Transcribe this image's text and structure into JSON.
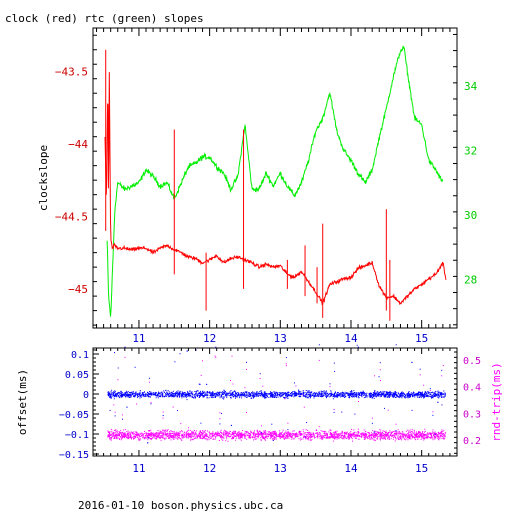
{
  "footer": "2016-01-10  boson.physics.ubc.ca",
  "chart_data": [
    {
      "type": "line",
      "title": "clock (red) rtc (green) slopes",
      "ylabel": "clockslope",
      "xlim": [
        10.35,
        15.5
      ],
      "ylim": [
        -45.27,
        -43.2
      ],
      "x_ticks": [
        11,
        12,
        13,
        14,
        15
      ],
      "y_ticks": [
        -45,
        -44.5,
        -44,
        -43.5
      ],
      "y_tick_labels": [
        "−45",
        "−44.5",
        "−44",
        "−43.5"
      ],
      "y2lim": [
        26.5,
        35.8
      ],
      "y2_ticks": [
        28,
        30,
        32,
        34
      ],
      "colors": {
        "clock": "#ff0000",
        "rtc": "#00ee00",
        "axis_left": "#cc0000",
        "axis_right": "#00cc00",
        "x_ticks": "#0000cc"
      },
      "series": [
        {
          "axis": "left",
          "x": [
            10.52,
            10.54,
            10.56,
            10.57,
            10.58,
            10.6,
            10.62,
            10.65,
            10.7,
            10.8,
            10.9,
            11.0,
            11.1,
            11.2,
            11.3,
            11.4,
            11.5,
            11.6,
            11.7,
            11.8,
            11.9,
            12.0,
            12.1,
            12.2,
            12.3,
            12.4,
            12.5,
            12.6,
            12.7,
            12.8,
            12.9,
            13.0,
            13.1,
            13.2,
            13.3,
            13.4,
            13.5,
            13.6,
            13.7,
            13.8,
            13.9,
            14.0,
            14.1,
            14.2,
            14.3,
            14.4,
            14.5,
            14.6,
            14.7,
            14.8,
            14.9,
            15.0,
            15.1,
            15.2,
            15.3,
            15.35
          ],
          "y": [
            -43.95,
            -44.4,
            -43.55,
            -44.5,
            -43.5,
            -44.65,
            -44.72,
            -44.7,
            -44.72,
            -44.72,
            -44.73,
            -44.72,
            -44.72,
            -44.75,
            -44.72,
            -44.7,
            -44.73,
            -44.75,
            -44.78,
            -44.79,
            -44.82,
            -44.8,
            -44.77,
            -44.82,
            -44.79,
            -44.78,
            -44.8,
            -44.82,
            -44.85,
            -44.83,
            -44.85,
            -44.84,
            -44.9,
            -44.92,
            -44.88,
            -44.95,
            -45.02,
            -45.1,
            -44.97,
            -44.95,
            -44.93,
            -44.92,
            -44.86,
            -44.84,
            -44.82,
            -44.98,
            -45.06,
            -45.05,
            -45.1,
            -45.05,
            -45.0,
            -44.97,
            -44.93,
            -44.9,
            -44.82,
            -44.95
          ]
        },
        {
          "axis": "right",
          "x": [
            10.55,
            10.57,
            10.6,
            10.63,
            10.66,
            10.7,
            10.8,
            10.9,
            11.0,
            11.1,
            11.2,
            11.3,
            11.4,
            11.5,
            11.6,
            11.7,
            11.8,
            11.9,
            12.0,
            12.1,
            12.2,
            12.3,
            12.4,
            12.5,
            12.6,
            12.7,
            12.8,
            12.9,
            13.0,
            13.1,
            13.2,
            13.3,
            13.4,
            13.5,
            13.6,
            13.7,
            13.8,
            13.9,
            14.0,
            14.1,
            14.2,
            14.3,
            14.4,
            14.5,
            14.6,
            14.7,
            14.75,
            14.8,
            14.9,
            15.0,
            15.1,
            15.2,
            15.3
          ],
          "y": [
            29.2,
            27.5,
            26.8,
            28.5,
            30.2,
            31.0,
            30.8,
            30.9,
            31.0,
            31.4,
            31.2,
            30.9,
            31.0,
            30.5,
            31.0,
            31.5,
            31.6,
            31.8,
            31.8,
            31.5,
            31.3,
            30.8,
            31.2,
            32.8,
            30.8,
            30.8,
            31.3,
            30.9,
            31.3,
            30.9,
            30.6,
            31.0,
            31.7,
            32.6,
            33.0,
            33.8,
            32.6,
            32.0,
            31.7,
            31.3,
            31.0,
            31.4,
            32.4,
            33.3,
            34.3,
            35.1,
            35.2,
            34.4,
            33.0,
            32.8,
            31.7,
            31.4,
            31.0
          ]
        }
      ]
    },
    {
      "type": "scatter",
      "ylabel": "offset(ms)",
      "y2label": "rnd-trip(ms)",
      "xlim": [
        10.35,
        15.5
      ],
      "ylim": [
        -0.155,
        0.115
      ],
      "x_ticks": [
        11,
        12,
        13,
        14,
        15
      ],
      "y_ticks": [
        0.1,
        0.05,
        0,
        -0.05,
        -0.1,
        -0.15
      ],
      "y_tick_labels": [
        "0.1",
        "0.05",
        "0",
        "−0.05",
        "−0.1",
        "−0.15"
      ],
      "y2lim": [
        0.14,
        0.545
      ],
      "y2_ticks": [
        0.2,
        0.3,
        0.4,
        0.5
      ],
      "colors": {
        "offset": "#0000ff",
        "roundtrip": "#ff00ff",
        "axis_left": "#0000cc",
        "axis_right": "#cc00cc"
      },
      "series": [
        {
          "axis": "left",
          "x_range": [
            10.55,
            15.33
          ],
          "center": 0.0,
          "spread": 0.012
        },
        {
          "axis": "right",
          "x_range": [
            10.55,
            15.33
          ],
          "center": 0.22,
          "spread": 0.025
        }
      ]
    }
  ]
}
